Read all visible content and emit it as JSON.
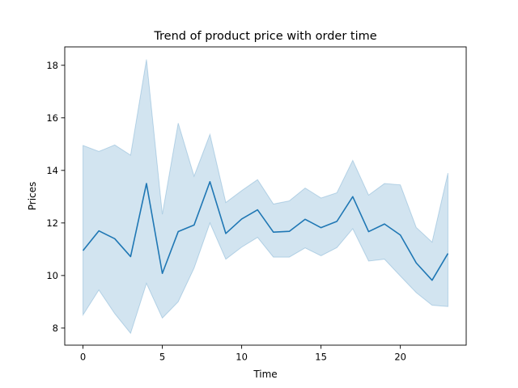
{
  "chart_data": {
    "type": "line",
    "title": "Trend of product price with order time",
    "xlabel": "Time",
    "ylabel": "Prices",
    "xlim": [
      -1.15,
      24.15
    ],
    "ylim": [
      7.35,
      18.7
    ],
    "x_ticks": [
      0,
      5,
      10,
      15,
      20
    ],
    "y_ticks": [
      8,
      10,
      12,
      14,
      16,
      18
    ],
    "grid": false,
    "colors": {
      "line": "#1f77b4",
      "band": "#1f77b4",
      "band_opacity": 0.2
    },
    "series": [
      {
        "x": [
          0,
          1,
          2,
          3,
          4,
          5,
          6,
          7,
          8,
          9,
          10,
          11,
          12,
          13,
          14,
          15,
          16,
          17,
          18,
          19,
          20,
          21,
          22,
          23
        ],
        "values": [
          10.95,
          11.7,
          11.4,
          10.72,
          13.5,
          10.08,
          11.67,
          11.92,
          13.57,
          11.6,
          12.15,
          12.5,
          11.65,
          11.68,
          12.14,
          11.82,
          12.06,
          13.0,
          11.67,
          11.96,
          11.54,
          10.48,
          9.82,
          10.84
        ],
        "ci_lower": [
          8.5,
          9.45,
          8.55,
          7.8,
          9.7,
          8.38,
          9.0,
          10.28,
          12.0,
          10.62,
          11.08,
          11.45,
          10.7,
          10.7,
          11.05,
          10.75,
          11.06,
          11.78,
          10.55,
          10.62,
          9.98,
          9.35,
          8.87,
          8.82
        ],
        "ci_upper": [
          14.95,
          14.72,
          14.97,
          14.58,
          18.22,
          12.33,
          15.8,
          13.78,
          15.37,
          12.78,
          13.23,
          13.65,
          12.72,
          12.84,
          13.33,
          12.95,
          13.15,
          14.38,
          13.06,
          13.5,
          13.45,
          11.83,
          11.27,
          13.9
        ]
      }
    ]
  }
}
